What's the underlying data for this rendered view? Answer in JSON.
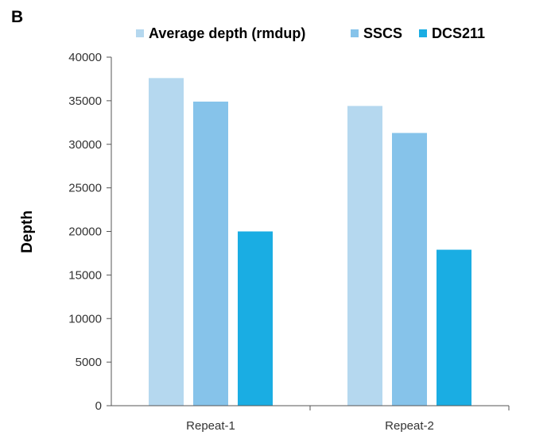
{
  "panel_label": "B",
  "chart_data": {
    "type": "bar",
    "title": "",
    "xlabel": "",
    "ylabel": "Depth",
    "ylim": [
      0,
      40000
    ],
    "yticks": [
      0,
      5000,
      10000,
      15000,
      20000,
      25000,
      30000,
      35000,
      40000
    ],
    "categories": [
      "Repeat-1",
      "Repeat-2"
    ],
    "series": [
      {
        "name": "Average depth (rmdup)",
        "color": "#b5d8ef",
        "values": [
          37600,
          34400
        ]
      },
      {
        "name": "SSCS",
        "color": "#86c3ea",
        "values": [
          34900,
          31300
        ]
      },
      {
        "name": "DCS211",
        "color": "#1aade3",
        "values": [
          20000,
          17900
        ]
      }
    ],
    "legend_position": "top",
    "grid": false
  }
}
